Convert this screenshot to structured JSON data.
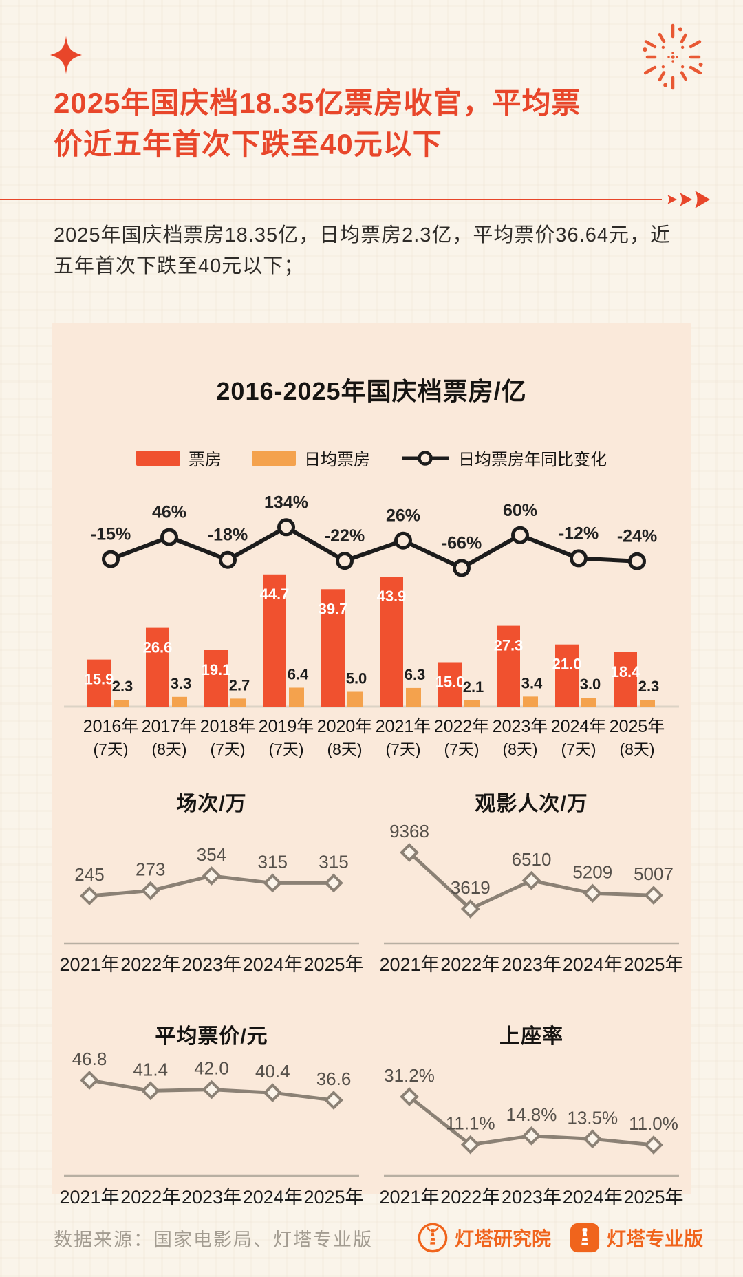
{
  "header": {
    "title": "2025年国庆档18.35亿票房收官，平均票价近五年首次下跌至40元以下",
    "title_lines": [
      "2025年国庆档18.35亿票房收官，平均票",
      "价近五年首次下跌至40元以下"
    ],
    "subtitle": "2025年国庆档票房18.35亿，日均票房2.3亿，平均票价36.64元，近五年首次下跌至40元以下；",
    "subtitle_lines": [
      "2025年国庆档票房18.35亿，日均票房2.3亿，平均票价36.64元，近",
      "五年首次下跌至40元以下；"
    ]
  },
  "colors": {
    "accent": "#E8462A",
    "bar_red": "#F0512F",
    "bar_orange": "#F4A24D",
    "line_black": "#1C1C1C",
    "mini_line_gray": "#8B8175",
    "card_bg": "#FAE9DA",
    "page_bg": "#FAF4EA",
    "brand_orange": "#F0641C",
    "source_gray": "#A39C91"
  },
  "chart_data": [
    {
      "id": "national-day-box-office",
      "type": "bar",
      "title": "2016-2025年国庆档票房/亿",
      "legend_position": "top",
      "categories": [
        "2016年",
        "2017年",
        "2018年",
        "2019年",
        "2020年",
        "2021年",
        "2022年",
        "2023年",
        "2024年",
        "2025年"
      ],
      "category_days": [
        "(7天)",
        "(8天)",
        "(7天)",
        "(7天)",
        "(8天)",
        "(7天)",
        "(7天)",
        "(8天)",
        "(7天)",
        "(8天)"
      ],
      "series": [
        {
          "name": "票房",
          "type": "bar",
          "color": "#F0512F",
          "values": [
            15.9,
            26.6,
            19.1,
            44.7,
            39.7,
            43.9,
            15.0,
            27.3,
            21.0,
            18.4
          ],
          "labels": [
            "15.9",
            "26.6",
            "19.1",
            "44.7",
            "39.7",
            "43.9",
            "15.0",
            "27.3",
            "21.0",
            "18.4"
          ]
        },
        {
          "name": "日均票房",
          "type": "bar",
          "color": "#F4A24D",
          "values": [
            2.3,
            3.3,
            2.7,
            6.4,
            5.0,
            6.3,
            2.1,
            3.4,
            3.0,
            2.3
          ],
          "labels": [
            "2.3",
            "3.3",
            "2.7",
            "6.4",
            "5.0",
            "6.3",
            "2.1",
            "3.4",
            "3.0",
            "2.3"
          ]
        },
        {
          "name": "日均票房年同比变化",
          "type": "line",
          "color": "#1C1C1C",
          "values": [
            -15,
            46,
            -18,
            134,
            -22,
            26,
            -66,
            60,
            -12,
            -24
          ],
          "labels": [
            "-15%",
            "46%",
            "-18%",
            "134%",
            "-22%",
            "26%",
            "-66%",
            "60%",
            "-12%",
            "-24%"
          ]
        }
      ]
    },
    {
      "id": "sessions",
      "type": "line",
      "title": "场次/万",
      "categories": [
        "2021年",
        "2022年",
        "2023年",
        "2024年",
        "2025年"
      ],
      "values": [
        245,
        273,
        354,
        315,
        315
      ],
      "labels": [
        "245",
        "273",
        "354",
        "315",
        "315"
      ]
    },
    {
      "id": "admissions",
      "type": "line",
      "title": "观影人次/万",
      "categories": [
        "2021年",
        "2022年",
        "2023年",
        "2024年",
        "2025年"
      ],
      "values": [
        9368,
        3619,
        6510,
        5209,
        5007
      ],
      "labels": [
        "9368",
        "3619",
        "6510",
        "5209",
        "5007"
      ]
    },
    {
      "id": "avg-ticket-price",
      "type": "line",
      "title": "平均票价/元",
      "categories": [
        "2021年",
        "2022年",
        "2023年",
        "2024年",
        "2025年"
      ],
      "values": [
        46.8,
        41.4,
        42.0,
        40.4,
        36.6
      ],
      "labels": [
        "46.8",
        "41.4",
        "42.0",
        "40.4",
        "36.6"
      ]
    },
    {
      "id": "occupancy-rate",
      "type": "line",
      "title": "上座率",
      "categories": [
        "2021年",
        "2022年",
        "2023年",
        "2024年",
        "2025年"
      ],
      "values": [
        31.2,
        11.1,
        14.8,
        13.5,
        11.0
      ],
      "labels": [
        "31.2%",
        "11.1%",
        "14.8%",
        "13.5%",
        "11.0%"
      ]
    }
  ],
  "footer": {
    "source": "数据来源：国家电影局、灯塔专业版",
    "brands": [
      {
        "name": "灯塔研究院"
      },
      {
        "name": "灯塔专业版"
      }
    ]
  }
}
